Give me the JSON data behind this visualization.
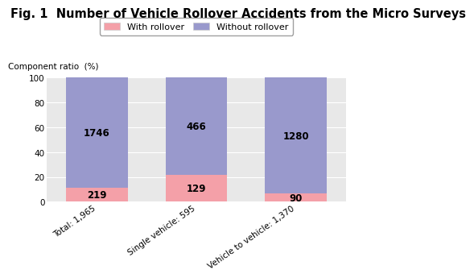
{
  "title": "Fig. 1  Number of Vehicle Rollover Accidents from the Micro Surveys",
  "categories": [
    "Total: 1,965",
    "Single vehicle: 595",
    "Vehicle to vehicle: 1,370"
  ],
  "with_rollover_pct": [
    11.14,
    21.68,
    6.57
  ],
  "without_rollover_pct": [
    88.86,
    78.32,
    93.43
  ],
  "with_rollover_labels": [
    "219",
    "129",
    "90"
  ],
  "without_rollover_labels": [
    "1746",
    "466",
    "1280"
  ],
  "color_with": "#f4a0a8",
  "color_without": "#9999cc",
  "ylabel": "Component ratio  (%)",
  "ylim": [
    0,
    100
  ],
  "yticks": [
    0,
    20,
    40,
    60,
    80,
    100
  ],
  "legend_with": "With rollover",
  "legend_without": "Without rollover",
  "title_fontsize": 10.5,
  "bar_width": 0.62,
  "label_fontsize": 8.5,
  "ylabel_fontsize": 7.5,
  "tick_fontsize": 7.5,
  "legend_fontsize": 8,
  "plot_bg_color": "#e8e8e8"
}
